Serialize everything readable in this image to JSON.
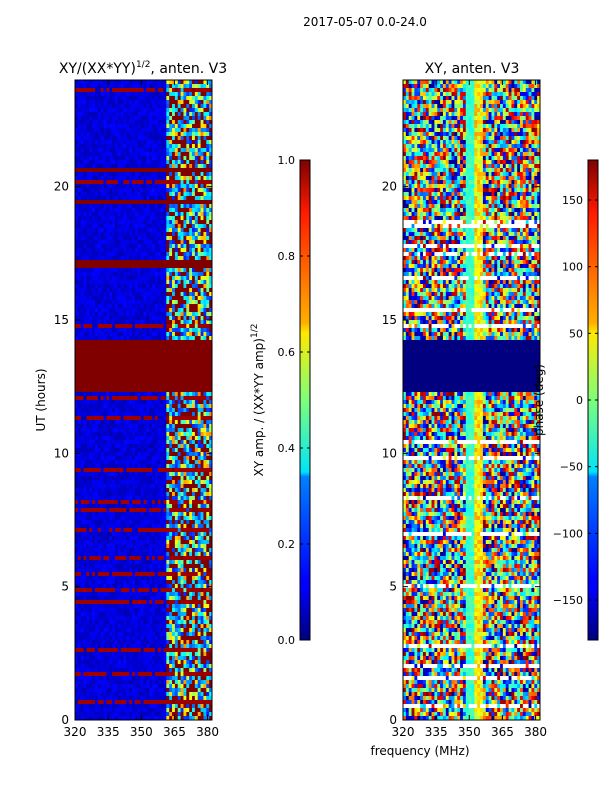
{
  "suptitle": "2017-05-07 0.0-24.0",
  "xlabel_shared": "frequency (MHz)",
  "chart_data": [
    {
      "type": "heatmap",
      "title_main": "XY/(XX*YY)",
      "title_exp": "1/2",
      "title_rest": ", anten. V3",
      "ylabel": "UT (hours)",
      "xlim": [
        320,
        382
      ],
      "ylim": [
        0,
        24
      ],
      "xticks": [
        "320",
        "335",
        "350",
        "365",
        "380"
      ],
      "xtick_values": [
        320,
        335,
        350,
        365,
        380
      ],
      "yticks": [
        "0",
        "5",
        "10",
        "15",
        "20"
      ],
      "ytick_values": [
        0,
        5,
        10,
        15,
        20
      ],
      "colorbar": {
        "label_main": "XY amp. / (XX*YY amp)",
        "label_exp": "1/2",
        "range": [
          0.0,
          1.0
        ],
        "ticks": [
          "0.0",
          "0.2",
          "0.4",
          "0.6",
          "0.8",
          "1.0"
        ],
        "tick_values": [
          0.0,
          0.2,
          0.4,
          0.6,
          0.8,
          1.0
        ],
        "colormap": "jet"
      },
      "saturated_bands_hours": [
        [
          12.3,
          14.2
        ],
        [
          16.9,
          17.2
        ],
        [
          20.5,
          20.7
        ],
        [
          19.3,
          19.5
        ]
      ],
      "typical_value": 0.05,
      "active_freq_range_mhz": [
        361,
        382
      ]
    },
    {
      "type": "heatmap",
      "title_main": "XY, anten. V3",
      "ylabel": "",
      "xlim": [
        320,
        382
      ],
      "ylim": [
        0,
        24
      ],
      "xticks": [
        "320",
        "335",
        "350",
        "365",
        "380"
      ],
      "xtick_values": [
        320,
        335,
        350,
        365,
        380
      ],
      "yticks": [
        "0",
        "5",
        "10",
        "15",
        "20"
      ],
      "ytick_values": [
        0,
        5,
        10,
        15,
        20
      ],
      "colorbar": {
        "label": "phase (deg)",
        "range": [
          -180,
          180
        ],
        "ticks": [
          "150",
          "100",
          "50",
          "0",
          "−50",
          "−100",
          "−150"
        ],
        "tick_values": [
          150,
          100,
          50,
          0,
          -50,
          -100,
          -150
        ],
        "colormap": "jet"
      },
      "saturated_band_hours": [
        12.3,
        14.2
      ],
      "saturated_band_value": -180
    }
  ]
}
